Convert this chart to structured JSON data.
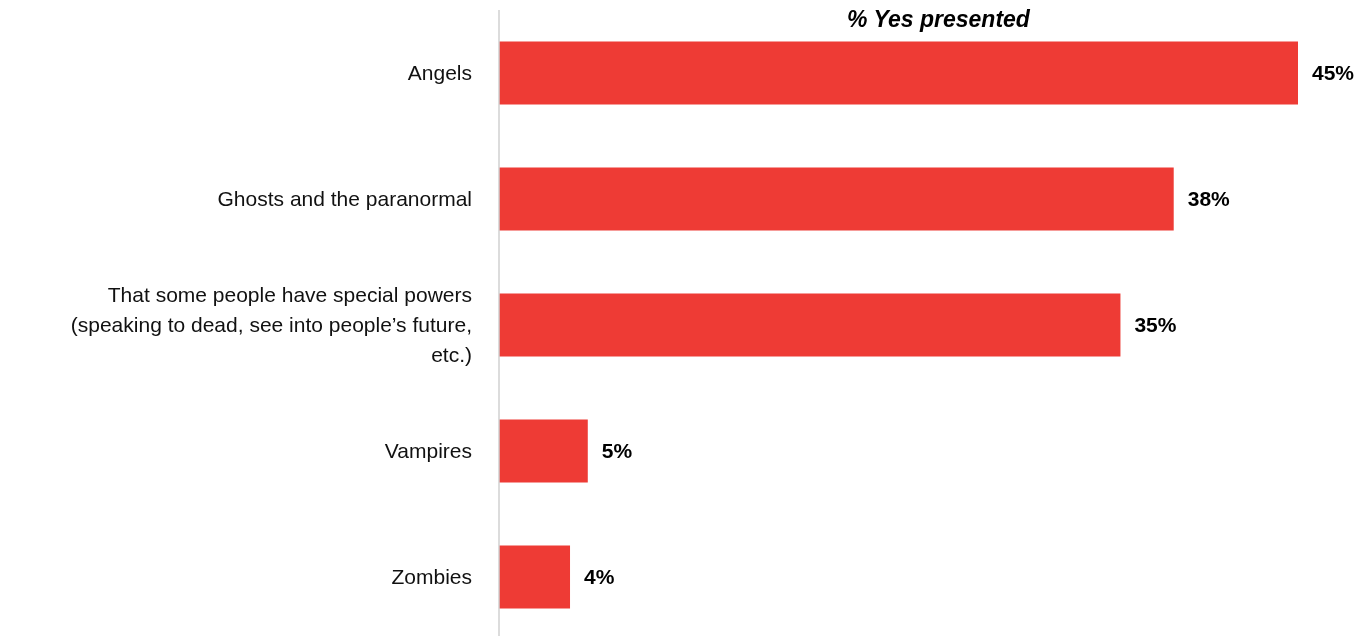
{
  "chart_data": {
    "type": "bar",
    "orientation": "horizontal",
    "title": "% Yes presented",
    "categories": [
      "Angels",
      "Ghosts and the paranormal",
      "That some people have special powers (speaking to dead, see into people’s future, etc.)",
      "Vampires",
      "Zombies"
    ],
    "values": [
      45,
      38,
      35,
      5,
      4
    ],
    "value_labels": [
      "45%",
      "38%",
      "35%",
      "5%",
      "4%"
    ],
    "color": "#ee3b35"
  }
}
